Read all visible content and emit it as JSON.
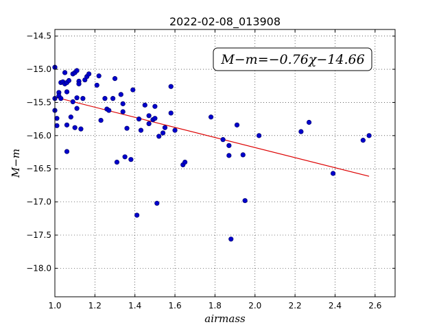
{
  "chart_data": {
    "type": "scatter",
    "title": "2022-02-08_013908",
    "xlabel": "airmass",
    "ylabel": "M−m",
    "xlim": [
      1.0,
      2.7
    ],
    "ylim": [
      -18.43,
      -14.4
    ],
    "x_ticks": [
      1.0,
      1.2,
      1.4,
      1.6,
      1.8,
      2.0,
      2.2,
      2.4,
      2.6
    ],
    "x_tick_labels": [
      "1.0",
      "1.2",
      "1.4",
      "1.6",
      "1.8",
      "2.0",
      "2.2",
      "2.4",
      "2.6"
    ],
    "y_ticks": [
      -14.5,
      -15.0,
      -15.5,
      -16.0,
      -16.5,
      -17.0,
      -17.5,
      -18.0
    ],
    "y_tick_labels": [
      "−14.5",
      "−15.0",
      "−15.5",
      "−16.0",
      "−16.5",
      "−17.0",
      "−17.5",
      "−18.0"
    ],
    "grid": true,
    "annotation": "M−m=−0.76χ−14.66",
    "point_color": "#0000cc",
    "line_color": "#dd0000",
    "fit_line": {
      "slope": -0.76,
      "intercept": -14.66,
      "x_range": [
        1.0,
        2.57
      ]
    },
    "points": [
      {
        "x": 1.0,
        "y": -14.97
      },
      {
        "x": 1.0,
        "y": -15.44
      },
      {
        "x": 1.0,
        "y": -15.62
      },
      {
        "x": 1.01,
        "y": -15.74
      },
      {
        "x": 1.01,
        "y": -15.85
      },
      {
        "x": 1.02,
        "y": -15.35
      },
      {
        "x": 1.02,
        "y": -15.4
      },
      {
        "x": 1.03,
        "y": -15.44
      },
      {
        "x": 1.03,
        "y": -15.2
      },
      {
        "x": 1.04,
        "y": -15.19
      },
      {
        "x": 1.05,
        "y": -15.05
      },
      {
        "x": 1.05,
        "y": -15.22
      },
      {
        "x": 1.06,
        "y": -15.2
      },
      {
        "x": 1.06,
        "y": -15.34
      },
      {
        "x": 1.06,
        "y": -15.84
      },
      {
        "x": 1.06,
        "y": -16.24
      },
      {
        "x": 1.07,
        "y": -15.17
      },
      {
        "x": 1.08,
        "y": -15.72
      },
      {
        "x": 1.09,
        "y": -15.07
      },
      {
        "x": 1.09,
        "y": -15.49
      },
      {
        "x": 1.1,
        "y": -15.05
      },
      {
        "x": 1.1,
        "y": -15.88
      },
      {
        "x": 1.11,
        "y": -15.02
      },
      {
        "x": 1.11,
        "y": -15.43
      },
      {
        "x": 1.11,
        "y": -15.59
      },
      {
        "x": 1.12,
        "y": -15.18
      },
      {
        "x": 1.12,
        "y": -15.22
      },
      {
        "x": 1.13,
        "y": -15.9
      },
      {
        "x": 1.14,
        "y": -15.44
      },
      {
        "x": 1.15,
        "y": -15.16
      },
      {
        "x": 1.16,
        "y": -15.11
      },
      {
        "x": 1.17,
        "y": -15.07
      },
      {
        "x": 1.21,
        "y": -15.24
      },
      {
        "x": 1.22,
        "y": -15.1
      },
      {
        "x": 1.23,
        "y": -15.77
      },
      {
        "x": 1.25,
        "y": -15.44
      },
      {
        "x": 1.26,
        "y": -15.6
      },
      {
        "x": 1.27,
        "y": -15.62
      },
      {
        "x": 1.29,
        "y": -15.44
      },
      {
        "x": 1.3,
        "y": -15.14
      },
      {
        "x": 1.31,
        "y": -16.4
      },
      {
        "x": 1.33,
        "y": -15.38
      },
      {
        "x": 1.34,
        "y": -15.52
      },
      {
        "x": 1.34,
        "y": -15.64
      },
      {
        "x": 1.35,
        "y": -16.32
      },
      {
        "x": 1.36,
        "y": -15.89
      },
      {
        "x": 1.38,
        "y": -16.36
      },
      {
        "x": 1.39,
        "y": -15.31
      },
      {
        "x": 1.41,
        "y": -17.2
      },
      {
        "x": 1.42,
        "y": -15.75
      },
      {
        "x": 1.43,
        "y": -15.92
      },
      {
        "x": 1.45,
        "y": -15.54
      },
      {
        "x": 1.47,
        "y": -15.82
      },
      {
        "x": 1.47,
        "y": -15.7
      },
      {
        "x": 1.49,
        "y": -15.76
      },
      {
        "x": 1.5,
        "y": -15.56
      },
      {
        "x": 1.5,
        "y": -15.74
      },
      {
        "x": 1.51,
        "y": -17.02
      },
      {
        "x": 1.52,
        "y": -16.01
      },
      {
        "x": 1.54,
        "y": -15.96
      },
      {
        "x": 1.55,
        "y": -15.88
      },
      {
        "x": 1.58,
        "y": -15.26
      },
      {
        "x": 1.58,
        "y": -15.66
      },
      {
        "x": 1.6,
        "y": -15.92
      },
      {
        "x": 1.64,
        "y": -16.44
      },
      {
        "x": 1.65,
        "y": -16.4
      },
      {
        "x": 1.78,
        "y": -15.72
      },
      {
        "x": 1.84,
        "y": -16.06
      },
      {
        "x": 1.87,
        "y": -16.15
      },
      {
        "x": 1.87,
        "y": -16.3
      },
      {
        "x": 1.88,
        "y": -17.56
      },
      {
        "x": 1.91,
        "y": -15.84
      },
      {
        "x": 1.94,
        "y": -16.29
      },
      {
        "x": 1.95,
        "y": -16.98
      },
      {
        "x": 2.02,
        "y": -16.0
      },
      {
        "x": 2.23,
        "y": -15.94
      },
      {
        "x": 2.27,
        "y": -15.8
      },
      {
        "x": 2.39,
        "y": -16.57
      },
      {
        "x": 2.54,
        "y": -16.07
      },
      {
        "x": 2.57,
        "y": -16.0
      }
    ]
  }
}
